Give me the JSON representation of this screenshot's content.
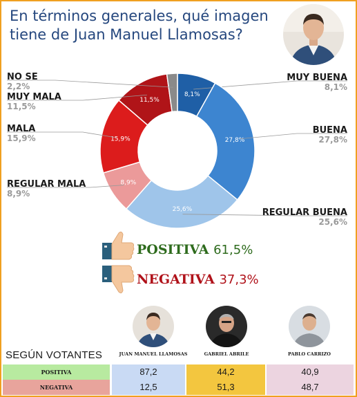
{
  "title": "En términos generales, qué imagen tiene de Juan Manuel Llamosas?",
  "chart_data": {
    "type": "pie",
    "slices": [
      {
        "name": "MUY BUENA",
        "value": 8.1,
        "label": "8,1%",
        "slice_label": "8,1%",
        "color": "#1f5fa6"
      },
      {
        "name": "BUENA",
        "value": 27.8,
        "label": "27,8%",
        "slice_label": "27,8%",
        "color": "#3d85d0"
      },
      {
        "name": "REGULAR BUENA",
        "value": 25.6,
        "label": "25,6%",
        "slice_label": "25,6%",
        "color": "#9fc5ea"
      },
      {
        "name": "REGULAR MALA",
        "value": 8.9,
        "label": "8,9%",
        "slice_label": "8,9%",
        "color": "#eb9a9a"
      },
      {
        "name": "MALA",
        "value": 15.9,
        "label": "15,9%",
        "slice_label": "15,9%",
        "color": "#dc1c1c"
      },
      {
        "name": "MUY MALA",
        "value": 11.5,
        "label": "11,5%",
        "slice_label": "11,5%",
        "color": "#b01418"
      },
      {
        "name": "NO SE",
        "value": 2.2,
        "label": "2,2%",
        "slice_label": "",
        "color": "#8a8a8a"
      }
    ]
  },
  "summary": {
    "positive_label": "POSITIVA",
    "positive_value": "61,5%",
    "negative_label": "NEGATIVA",
    "negative_value": "37,3%"
  },
  "voters": {
    "title": "SEGÚN VOTANTES",
    "candidates": [
      "JUAN MANUEL LLAMOSAS",
      "GABRIEL ABRILE",
      "PABLO CARRIZO"
    ],
    "rows": [
      {
        "label": "POSITIVA",
        "values": [
          "87,2",
          "44,2",
          "40,9"
        ]
      },
      {
        "label": "NEGATIVA",
        "values": [
          "12,5",
          "51,3",
          "48,7"
        ]
      }
    ]
  },
  "colors": {
    "title": "#25477e",
    "positive": "#2e6b1d",
    "negative": "#b0121a",
    "border": "#f0a020",
    "row_positive_bg": "#b8eaa0",
    "row_negative_bg": "#e8a49c",
    "col1_bg": "#c9daf4",
    "col2_bg": "#f3c63f",
    "col3_bg": "#ecd4e0"
  },
  "icons": {
    "thumbs_up": "thumbs-up-icon",
    "thumbs_down": "thumbs-down-icon"
  }
}
